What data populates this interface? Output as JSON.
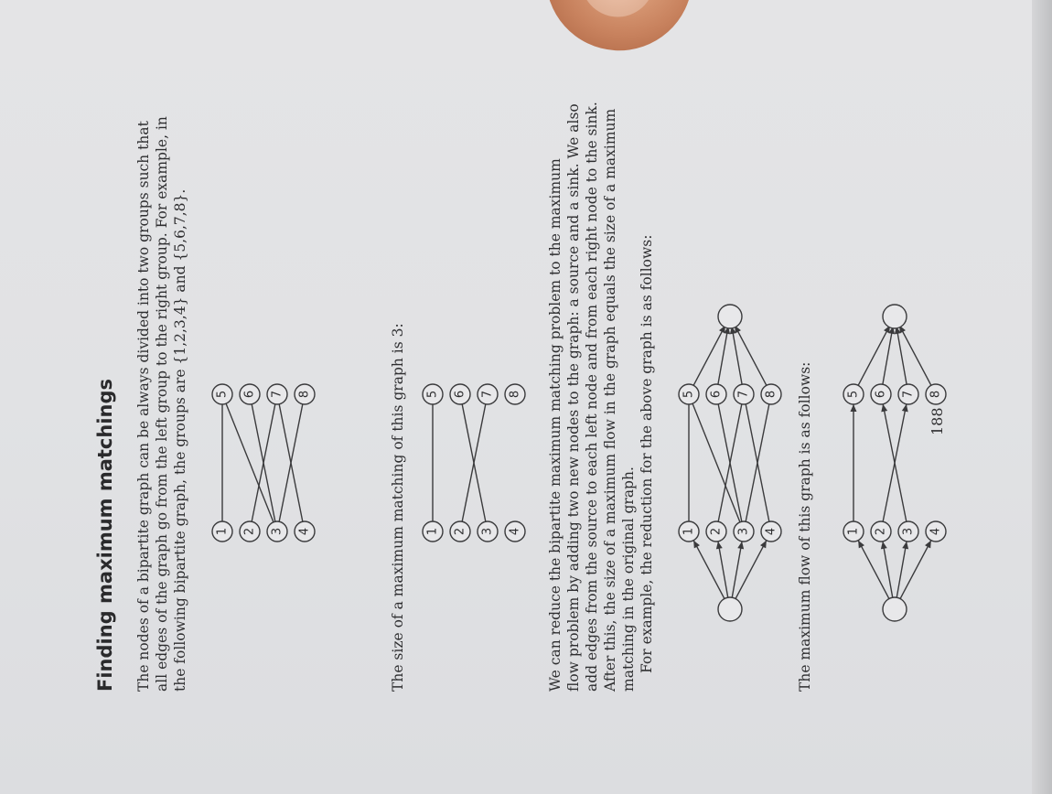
{
  "heading": "Finding maximum matchings",
  "intro_lines": [
    "The nodes of a bipartite graph can be always divided into two groups such that",
    "all edges of the graph go from the left group to the right group. For example, in",
    "the following bipartite graph, the groups are {1,2,3,4} and {5,6,7,8}."
  ],
  "matching_sentence": "The size of a maximum matching of this graph is 3:",
  "reduction_lines": [
    "We can reduce the bipartite maximum matching problem to the maximum",
    "flow problem by adding two new nodes to the graph: a source and a sink. We also",
    "add edges from the source to each left node and from each right node to the sink.",
    "After this, the size of a maximum flow in the graph equals the size of a maximum",
    "matching in the original graph.",
    "For example, the reduction for the above graph is as follows:"
  ],
  "maxflow_sentence": "The maximum flow of this graph is as follows:",
  "page_number": "188",
  "left_nodes": [
    "1",
    "2",
    "3",
    "4"
  ],
  "right_nodes": [
    "5",
    "6",
    "7",
    "8"
  ],
  "edges": [
    [
      "1",
      "5"
    ],
    [
      "2",
      "7"
    ],
    [
      "3",
      "5"
    ],
    [
      "3",
      "6"
    ],
    [
      "3",
      "8"
    ],
    [
      "4",
      "7"
    ]
  ],
  "matching_edges": [
    [
      "1",
      "5"
    ],
    [
      "2",
      "7"
    ],
    [
      "3",
      "6"
    ]
  ]
}
